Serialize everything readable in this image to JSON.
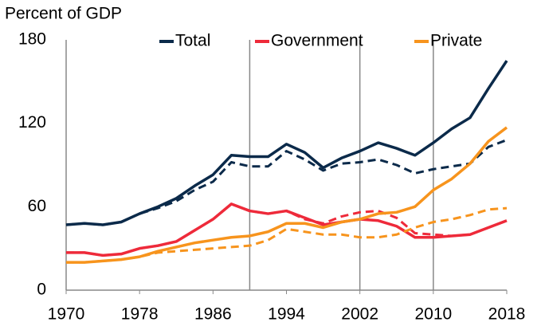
{
  "chart_data": {
    "type": "line",
    "ylabel": "Percent of GDP",
    "x": [
      1970,
      1972,
      1974,
      1976,
      1978,
      1980,
      1982,
      1984,
      1986,
      1988,
      1990,
      1992,
      1994,
      1996,
      1998,
      2000,
      2002,
      2004,
      2006,
      2008,
      2010,
      2012,
      2014,
      2016,
      2018
    ],
    "series": [
      {
        "name": "Total",
        "color": "#0b2a4a",
        "values": [
          47,
          48,
          47,
          49,
          55,
          60,
          66,
          75,
          83,
          97,
          96,
          96,
          105,
          99,
          88,
          95,
          100,
          106,
          102,
          97,
          106,
          116,
          124,
          145,
          165
        ]
      },
      {
        "color": "#0b2a4a",
        "dash": true,
        "values": [
          47,
          48,
          47,
          49,
          55,
          59,
          64,
          72,
          78,
          92,
          89,
          89,
          100,
          94,
          86,
          91,
          92,
          94,
          90,
          84,
          87,
          89,
          91,
          103,
          108
        ]
      },
      {
        "name": "Government",
        "color": "#ee2a3a",
        "values": [
          27,
          27,
          25,
          26,
          30,
          32,
          35,
          43,
          51,
          62,
          57,
          55,
          57,
          52,
          47,
          49,
          51,
          50,
          46,
          38,
          38,
          39,
          40,
          45,
          50
        ]
      },
      {
        "color": "#ee2a3a",
        "dash": true,
        "values": [
          27,
          27,
          25,
          26,
          30,
          32,
          35,
          43,
          51,
          62,
          57,
          55,
          57,
          51,
          48,
          53,
          56,
          57,
          52,
          41,
          40,
          39,
          40,
          45,
          50
        ]
      },
      {
        "name": "Private",
        "color": "#f7941d",
        "values": [
          20,
          20,
          21,
          22,
          24,
          28,
          31,
          34,
          36,
          38,
          39,
          42,
          48,
          48,
          45,
          49,
          51,
          55,
          56,
          60,
          72,
          80,
          91,
          107,
          117
        ]
      },
      {
        "color": "#f7941d",
        "dash": true,
        "values": [
          20,
          20,
          21,
          22,
          24,
          27,
          28,
          29,
          30,
          31,
          32,
          36,
          44,
          42,
          40,
          40,
          38,
          38,
          40,
          45,
          49,
          51,
          54,
          58,
          59
        ]
      }
    ],
    "xlim": [
      1970,
      2018
    ],
    "xticks": [
      1970,
      1978,
      1986,
      1994,
      2002,
      2010,
      2018
    ],
    "ylim": [
      0,
      180
    ],
    "yticks": [
      0,
      60,
      120,
      180
    ],
    "vlines": [
      1990,
      2002,
      2010
    ],
    "legend": "top"
  }
}
